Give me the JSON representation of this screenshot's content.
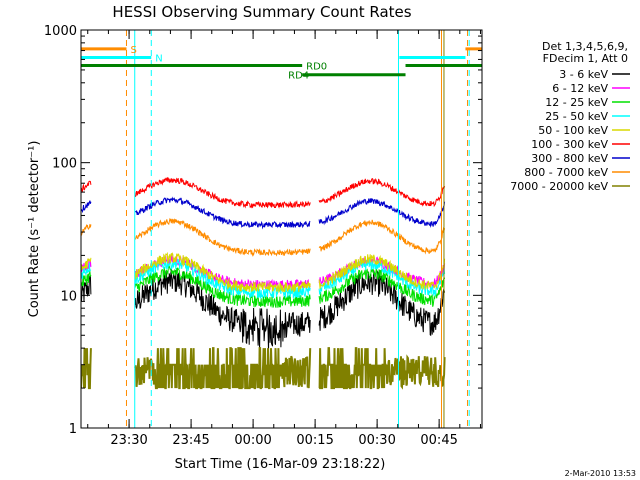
{
  "chart_data": {
    "type": "line",
    "title": "HESSI Observing Summary Count Rates",
    "xlabel": "Start Time (16-Mar-09 23:18:22)",
    "ylabel": "Count Rate (s⁻¹ detector⁻¹)",
    "x_unit": "minutes after 16-Mar-09 23:18:22",
    "xlim": [
      0,
      97
    ],
    "ylim": [
      1,
      1000
    ],
    "yscale": "log",
    "x_ticks": [
      {
        "t": 11.63,
        "label": "23:30"
      },
      {
        "t": 26.63,
        "label": "23:45"
      },
      {
        "t": 41.63,
        "label": "00:00"
      },
      {
        "t": 56.63,
        "label": "00:15"
      },
      {
        "t": 71.63,
        "label": "00:30"
      },
      {
        "t": 86.63,
        "label": "00:45"
      }
    ],
    "y_ticks": [
      {
        "v": 1,
        "label": "1"
      },
      {
        "v": 10,
        "label": "10"
      },
      {
        "v": 100,
        "label": "100"
      },
      {
        "v": 1000,
        "label": "1000"
      }
    ],
    "legend_header": [
      "Det 1,3,4,5,6,9,",
      "FDecim 1, Att 0"
    ],
    "legend_placement": "right",
    "series": [
      {
        "name": "3 - 6 keV",
        "color": "#000000",
        "base": 6,
        "scale": 0.38,
        "noise": 0.22
      },
      {
        "name": "6 - 12 keV",
        "color": "#ff00ff",
        "base": 12,
        "scale": 0.18,
        "noise": 0.09
      },
      {
        "name": "12 - 25 keV",
        "color": "#00e000",
        "base": 9,
        "scale": 0.22,
        "noise": 0.11
      },
      {
        "name": "25 - 50 keV",
        "color": "#00ffff",
        "base": 10.5,
        "scale": 0.22,
        "noise": 0.1
      },
      {
        "name": "50 - 100 keV",
        "color": "#d8d800",
        "base": 11.5,
        "scale": 0.22,
        "noise": 0.09
      },
      {
        "name": "100 - 300 keV",
        "color": "#ff0000",
        "base": 48,
        "scale": 0.18,
        "noise": 0.05
      },
      {
        "name": "300 - 800 keV",
        "color": "#0000cc",
        "base": 34,
        "scale": 0.18,
        "noise": 0.05
      },
      {
        "name": "800 - 7000 keV",
        "color": "#ff8c00",
        "base": 21,
        "scale": 0.24,
        "noise": 0.05
      },
      {
        "name": "7000 - 20000 keV",
        "color": "#808000",
        "base": 2,
        "scale": 0.0,
        "noise": 0.35
      }
    ],
    "intervals": [
      {
        "label": "S",
        "color": "#ff8c00",
        "y": 720,
        "dash_color": "#ff8c00",
        "segments": [
          [
            0,
            11
          ],
          [
            93,
            97
          ]
        ],
        "dashed_at": [
          11
        ]
      },
      {
        "label": "N",
        "color": "#00ffff",
        "y": 620,
        "dash_color": "#00ffff",
        "segments": [
          [
            0,
            17
          ],
          [
            77,
            93
          ]
        ],
        "dashed_at": [
          17
        ]
      },
      {
        "label": "RD0",
        "color": "#008000",
        "y": 540,
        "segments": [
          [
            0,
            53.5
          ],
          [
            78.5,
            97
          ]
        ]
      },
      {
        "label": "RD4",
        "color": "#008000",
        "y": 460,
        "segments": [
          [
            53.5,
            78.5
          ]
        ]
      }
    ],
    "vertical_lines": [
      {
        "t": 0,
        "color": "#00ffff"
      },
      {
        "t": 13,
        "color": "#00ffff"
      },
      {
        "t": 11,
        "color": "#ff8c00",
        "dashed": true
      },
      {
        "t": 17,
        "color": "#00ffff",
        "dashed": true
      },
      {
        "t": 76.8,
        "color": "#00ffff"
      },
      {
        "t": 87.2,
        "color": "#ff8c00"
      },
      {
        "t": 87.8,
        "color": "#808000"
      },
      {
        "t": 93.5,
        "color": "#ff8c00",
        "dashed": true
      },
      {
        "t": 93.9,
        "color": "#00ffff",
        "dashed": true
      }
    ],
    "saa_intervals": [
      [
        2.5,
        13
      ],
      [
        55.5,
        57.5
      ],
      [
        88,
        94
      ]
    ],
    "data_intervals": [
      [
        0,
        2.5
      ],
      [
        13,
        55.5
      ],
      [
        57.5,
        88
      ]
    ]
  },
  "timestamp": "2-Mar-2010 13:53"
}
